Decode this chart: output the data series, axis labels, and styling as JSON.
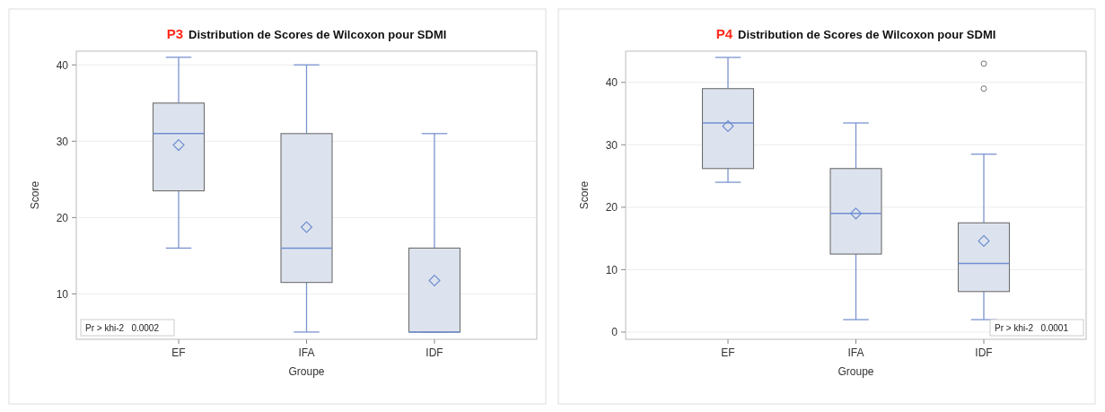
{
  "chart_data": [
    {
      "type": "box",
      "title": "P3 Distribution de Scores de Wilcoxon pour SDMI",
      "xlabel": "Groupe",
      "ylabel": "Score",
      "categories": [
        "EF",
        "IFA",
        "IDF"
      ],
      "ylim": [
        4.05,
        41.8
      ],
      "yticks": [
        10,
        20,
        30,
        40
      ],
      "grid": "y",
      "marker": "diamond",
      "color": "#dde3ee",
      "boxes": [
        {
          "low": 16,
          "q1": 23.5,
          "median": 31,
          "q3": 35,
          "high": 41,
          "mean": 29.5
        },
        {
          "low": 5,
          "q1": 11.5,
          "median": 16,
          "q3": 31,
          "high": 40,
          "mean": 18.75
        },
        {
          "low": 5,
          "q1": 5,
          "median": 5,
          "q3": 16,
          "high": 31,
          "mean": 11.75
        }
      ],
      "annotations": [
        "Pr > khi-2   0.0002"
      ]
    },
    {
      "type": "box",
      "title": "P4 Distribution de Scores de Wilcoxon pour SDMI",
      "xlabel": "Groupe",
      "ylabel": "Score",
      "categories": [
        "EF",
        "IFA",
        "IDF"
      ],
      "ylim": [
        -1.15,
        45
      ],
      "yticks": [
        0,
        10,
        20,
        30,
        40
      ],
      "grid": "y",
      "marker": "diamond",
      "color": "#dde3ee",
      "boxes": [
        {
          "low": 24,
          "q1": 26.2,
          "median": 33.5,
          "q3": 39,
          "high": 44,
          "mean": 33
        },
        {
          "low": 2,
          "q1": 12.5,
          "median": 19,
          "q3": 26.2,
          "high": 33.5,
          "mean": 19
        },
        {
          "low": 2,
          "q1": 6.5,
          "median": 11,
          "q3": 17.5,
          "high": 28.5,
          "mean": 14.6,
          "outliers": [
            39,
            43
          ]
        }
      ],
      "annotations": [
        "Pr > khi-2   0.0001"
      ]
    }
  ]
}
